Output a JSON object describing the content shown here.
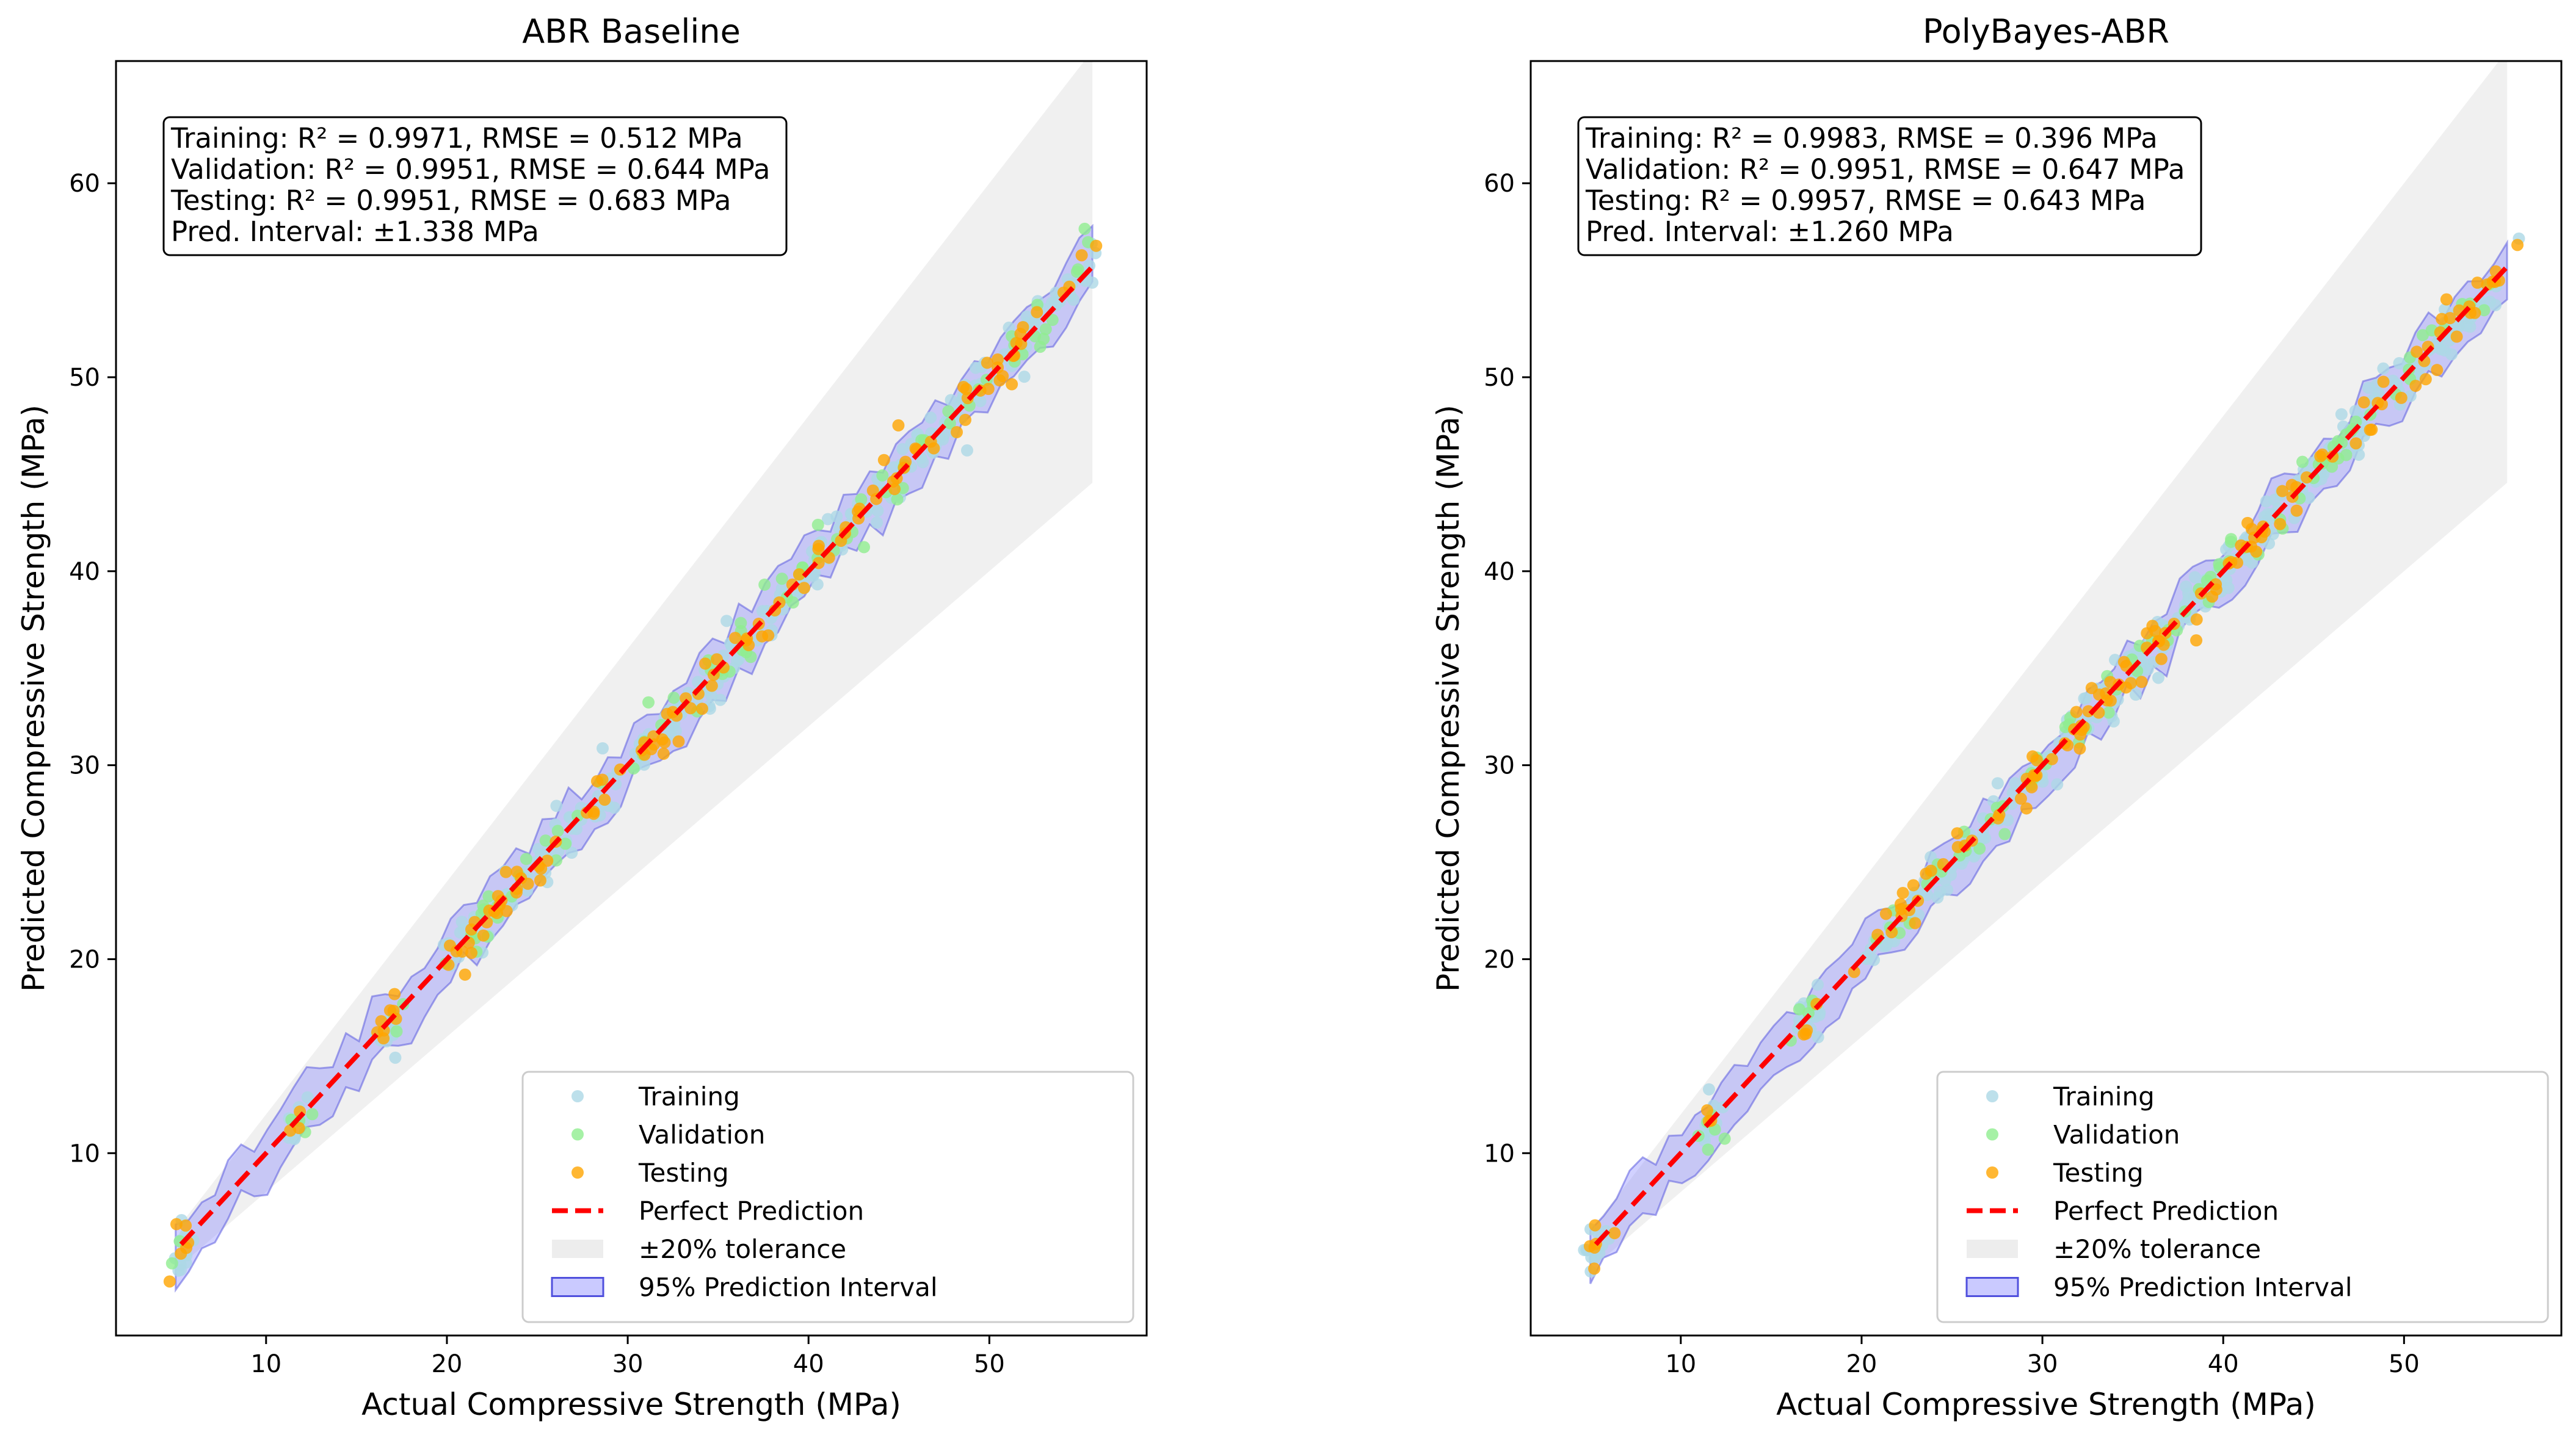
{
  "figure": {
    "colors": {
      "training": "#add8e6",
      "validation": "#90ee90",
      "testing": "#ffa500",
      "perfect_line": "#ff0000",
      "tolerance_band": "#e6e6e6",
      "interval_band": "#7b7bff",
      "interval_edge": "#5050dd"
    }
  },
  "chart_data": [
    {
      "type": "scatter",
      "title": "ABR Baseline",
      "xlabel": "Actual Compressive Strength (MPa)",
      "ylabel": "Predicted Compressive Strength (MPa)",
      "xlim": [
        1.7,
        58.7
      ],
      "ylim": [
        0.6,
        66.3
      ],
      "xticks": [
        10,
        20,
        30,
        40,
        50
      ],
      "yticks": [
        10,
        20,
        30,
        40,
        50,
        60
      ],
      "stats": [
        "Training: R² = 0.9971, RMSE = 0.512 MPa",
        "Validation: R² = 0.9951, RMSE = 0.644 MPa",
        "Testing: R² = 0.9951, RMSE = 0.683 MPa",
        "Pred. Interval: ±1.338 MPa"
      ],
      "tolerance": 0.2,
      "prediction_interval": 1.338,
      "noise": 0.6,
      "seed": 11,
      "clusters": [
        5.3,
        11.6,
        16.9,
        20.9,
        22.5,
        23.9,
        25.5,
        27.2,
        29.3,
        31.4,
        33.0,
        34.5,
        36.0,
        37.4,
        39.0,
        40.5,
        42.0,
        43.6,
        44.9,
        46.5,
        48.0,
        50.0,
        51.5,
        52.6,
        54.8
      ],
      "legend": [
        "Training",
        "Validation",
        "Testing",
        "Perfect Prediction",
        "±20% tolerance",
        "95% Prediction Interval"
      ],
      "legend_position": "lower-right"
    },
    {
      "type": "scatter",
      "title": "PolyBayes-ABR",
      "xlabel": "Actual Compressive Strength (MPa)",
      "ylabel": "Predicted Compressive Strength (MPa)",
      "xlim": [
        1.7,
        58.7
      ],
      "ylim": [
        0.6,
        66.3
      ],
      "xticks": [
        10,
        20,
        30,
        40,
        50
      ],
      "yticks": [
        10,
        20,
        30,
        40,
        50,
        60
      ],
      "stats": [
        "Training: R² = 0.9983, RMSE = 0.396 MPa",
        "Validation: R² = 0.9951, RMSE = 0.647 MPa",
        "Testing: R² = 0.9957, RMSE = 0.643 MPa",
        "Pred. Interval: ±1.260 MPa"
      ],
      "tolerance": 0.2,
      "prediction_interval": 1.26,
      "noise": 0.55,
      "seed": 29,
      "clusters": [
        5.3,
        11.6,
        16.9,
        20.9,
        22.5,
        23.9,
        25.5,
        27.2,
        29.3,
        31.4,
        33.0,
        34.5,
        36.0,
        37.4,
        39.0,
        40.5,
        42.0,
        43.6,
        44.9,
        46.5,
        48.0,
        50.0,
        51.5,
        52.6,
        54.8
      ],
      "legend": [
        "Training",
        "Validation",
        "Testing",
        "Perfect Prediction",
        "±20% tolerance",
        "95% Prediction Interval"
      ],
      "legend_position": "lower-right"
    }
  ]
}
